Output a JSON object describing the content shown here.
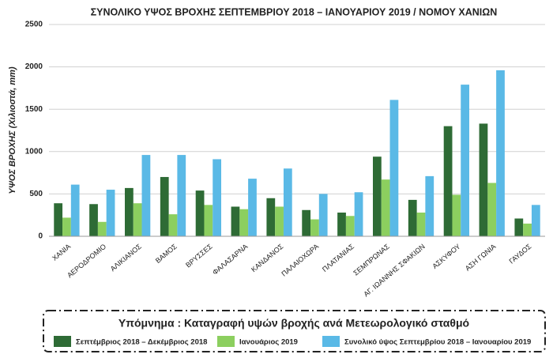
{
  "chart_data": {
    "type": "bar",
    "title": "ΣΥΝΟΛΙΚΟ ΥΨΟΣ ΒΡΟΧΗΣ ΣΕΠΤΕΜΒΡΙΟΥ 2018 – ΙΑΝΟΥΑΡΙΟΥ 2019 / ΝΟΜΟΥ ΧΑΝΙΩΝ",
    "y_label": "ΥΨΟΣ ΒΡΟΧΗΣ (Χιλιοστά, mm)",
    "legend_title": "Υπόμνημα : Καταγραφή υψών βροχής ανά Μετεωρολογικό σταθμό",
    "categories": [
      "ΧΑΝΙΑ",
      "ΑΕΡΟΔΡΟΜΙΟ",
      "ΑΛΙΚΙΑΝΟΣ",
      "ΒΑΜΟΣ",
      "ΒΡΥΣΣΕΣ",
      "ΦΑΛΑΣΑΡΝΑ",
      "ΚΑΝΔΑΝΟΣ",
      "ΠΑΛΑΙΟΧΩΡΑ",
      "ΠΛΑΤΑΝΙΑΣ",
      "ΣΕΜΠΡΩΝΑΣ",
      "ΑΓ. ΙΩΑΝΝΗΣ ΣΦΑΚΙΩΝ",
      "ΑΣΚΥΦΟΥ",
      "ΑΣΗ ΓΩΝΙΑ",
      "ΓΑΥΔΟΣ"
    ],
    "series": [
      {
        "name": "Σεπτέμβριος 2018 – Δεκέμβριος 2018",
        "color": "#2e6b35",
        "values": [
          390,
          380,
          570,
          700,
          540,
          350,
          450,
          310,
          280,
          940,
          430,
          1300,
          1330,
          210
        ]
      },
      {
        "name": "Ιανουάριος 2019",
        "color": "#8ccf5f",
        "values": [
          220,
          170,
          390,
          260,
          370,
          320,
          350,
          200,
          240,
          670,
          280,
          490,
          630,
          150
        ]
      },
      {
        "name": "Συνολικό ύψος Σεπτεμβρίου 2018 – Ιανουαρίου 2019",
        "color": "#5ab9e6",
        "values": [
          610,
          550,
          960,
          960,
          910,
          680,
          800,
          500,
          520,
          1610,
          710,
          1790,
          1960,
          370
        ]
      }
    ],
    "ylim": [
      0,
      2500
    ],
    "yticks": [
      0,
      500,
      1000,
      1500,
      2000,
      2500
    ],
    "grid": true
  }
}
